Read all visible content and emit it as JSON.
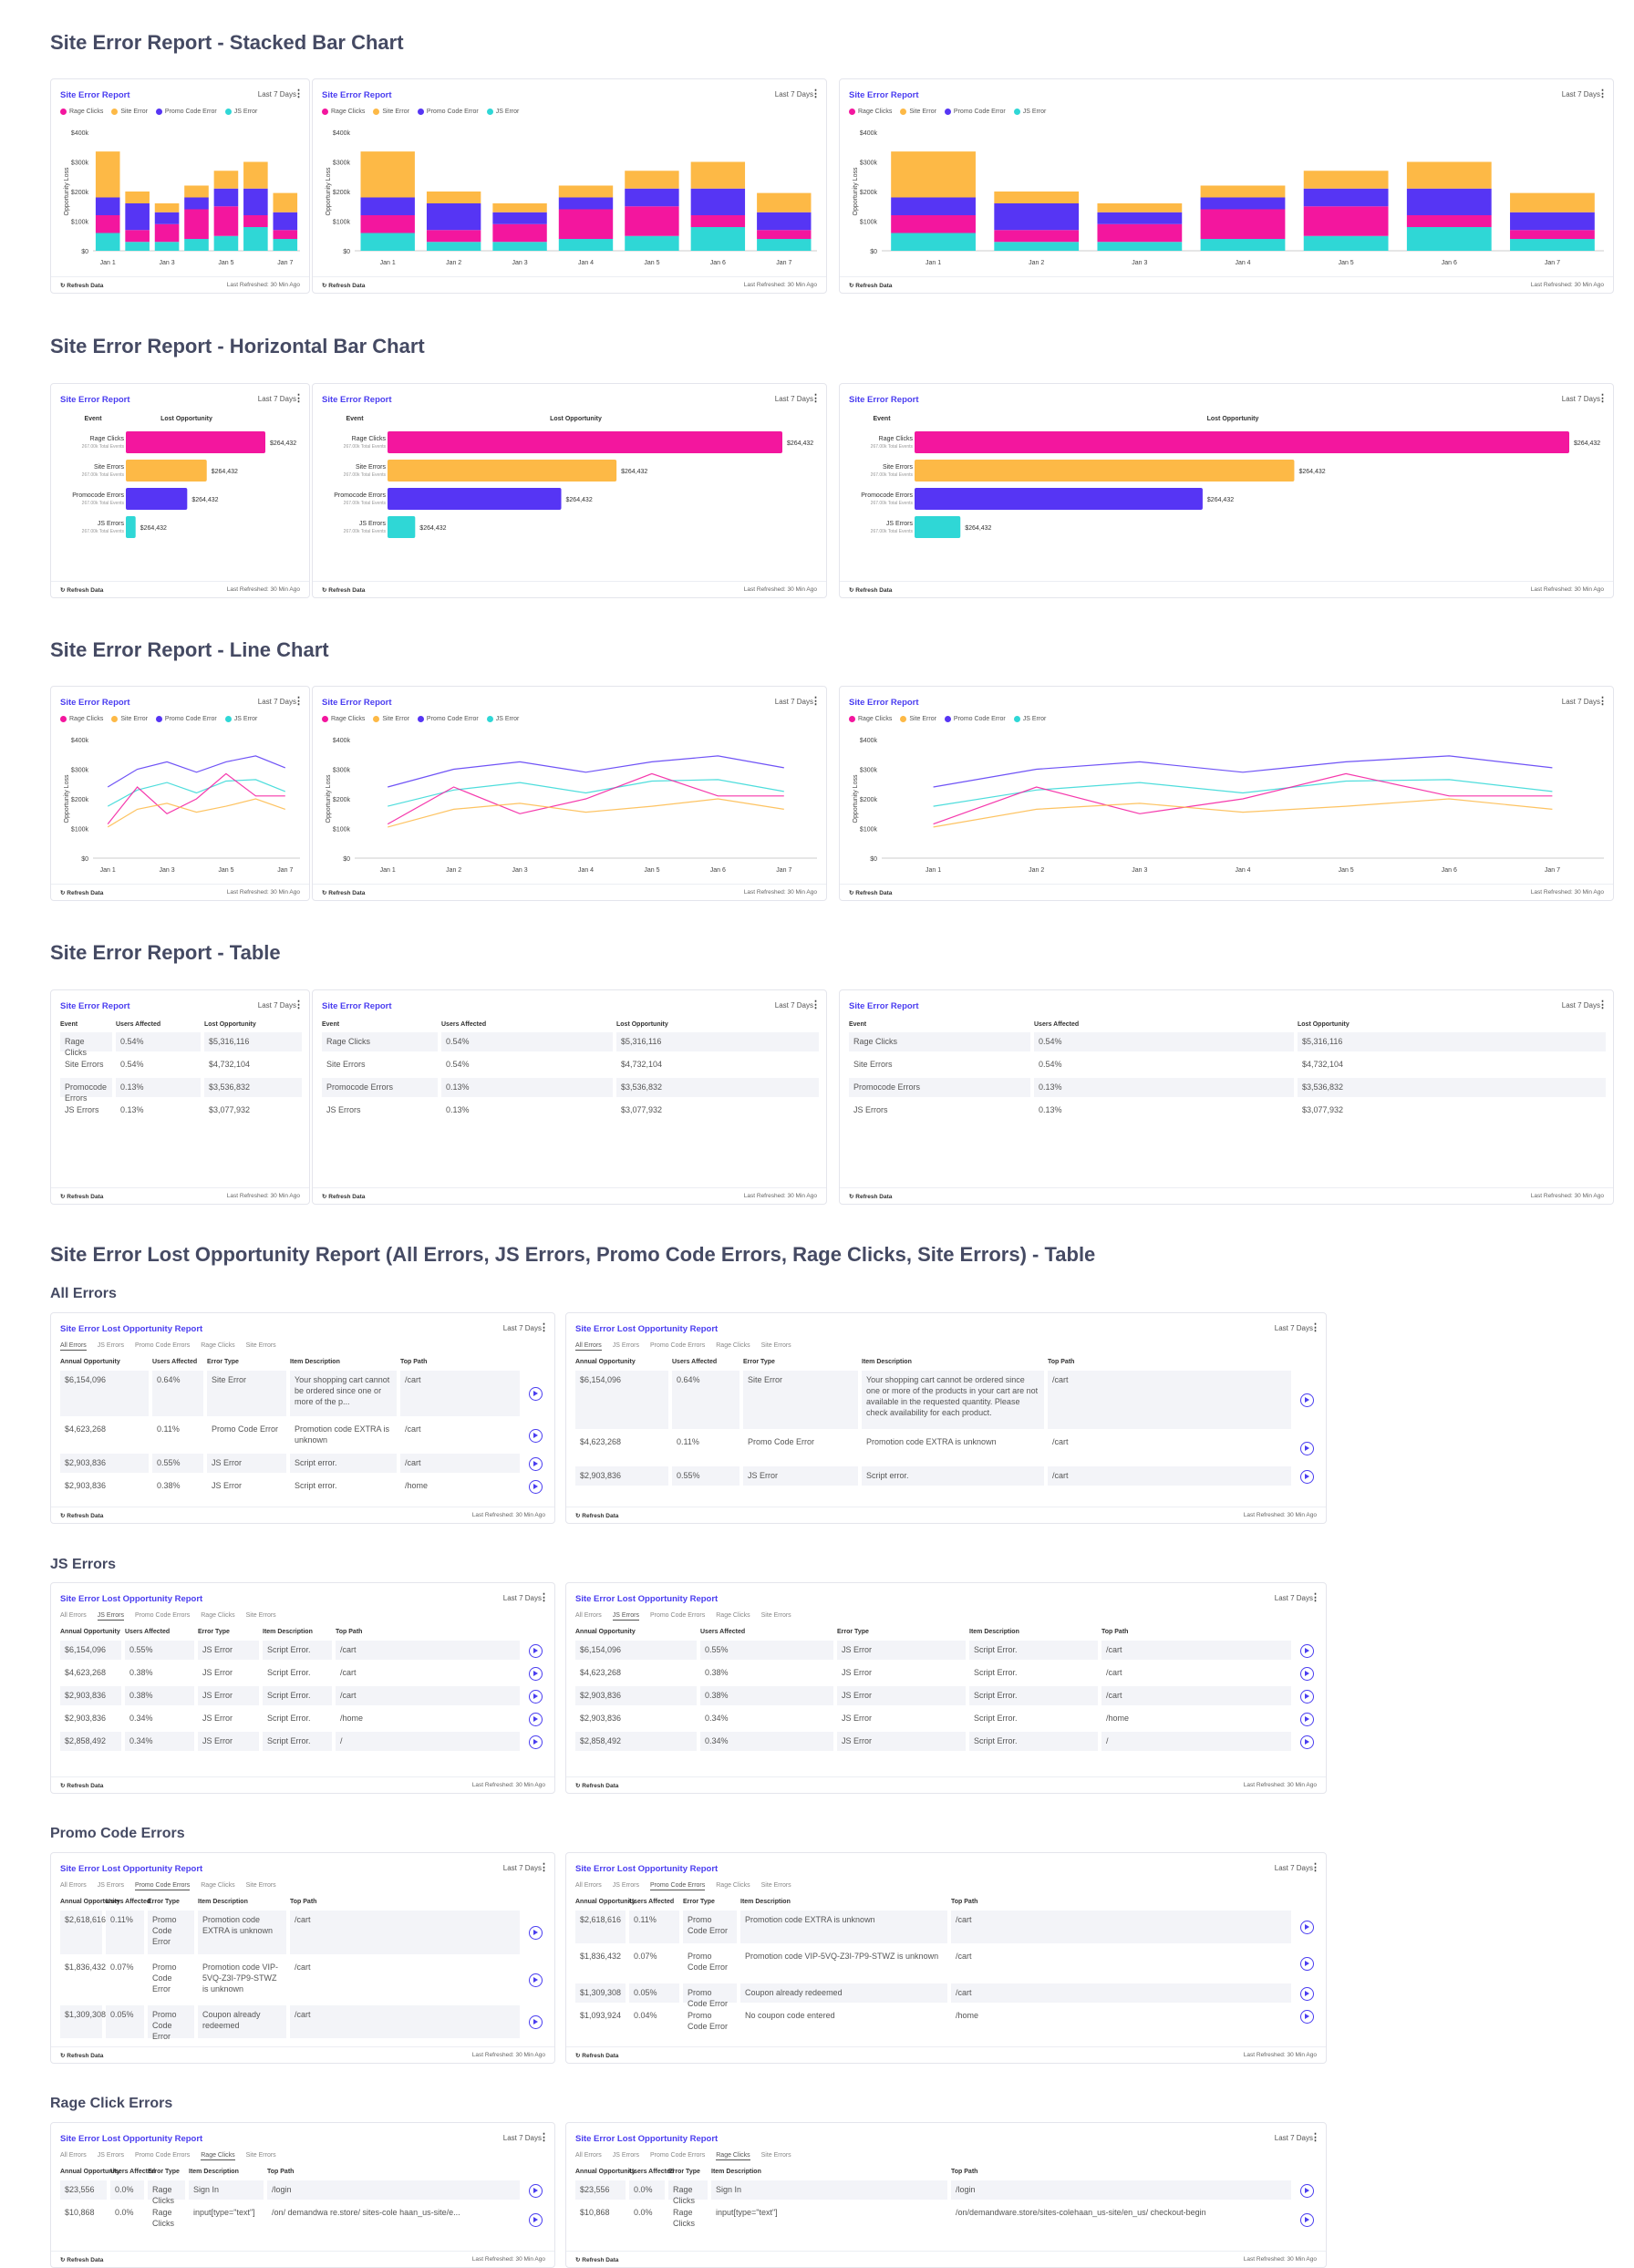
{
  "sections": {
    "stacked": "Site Error Report - Stacked Bar Chart",
    "horizontal": "Site Error Report - Horizontal Bar Chart",
    "line": "Site Error Report - Line Chart",
    "table": "Site Error Report - Table",
    "lost": "Site Error Lost Opportunity Report (All Errors, JS Errors, Promo Code Errors, Rage Clicks, Site Errors) - Table",
    "all_errors": "All Errors",
    "js_errors": "JS Errors",
    "promo_errors": "Promo Code Errors",
    "rage_errors": "Rage Click Errors"
  },
  "card": {
    "title": "Site Error Report",
    "range": "Last 7 Days",
    "refresh": "Refresh Data",
    "refreshed": "Last Refreshed: 30 Min Ago",
    "lost_title": "Site Error Lost Opportunity Report"
  },
  "colors": {
    "rage": "#f3169e",
    "site": "#fdb946",
    "promo": "#5635f4",
    "js": "#2fd7d6",
    "accent": "#4a3df0"
  },
  "legend": [
    "Rage Clicks",
    "Site Error",
    "Promo Code Error",
    "JS Error"
  ],
  "chart_data": [
    {
      "type": "bar",
      "stacked": true,
      "categories": [
        "Jan 1",
        "Jan 2",
        "Jan 3",
        "Jan 4",
        "Jan 5",
        "Jan 6",
        "Jan 7"
      ],
      "x_tick_labels_small": [
        "Jan 1",
        "Jan 3",
        "Jan 5",
        "Jan 7"
      ],
      "ylabel": "Opportunity Loss",
      "yticks": [
        "$0",
        "$100k",
        "$200k",
        "$300k",
        "$400k"
      ],
      "ylim": [
        0,
        400000
      ],
      "series": [
        {
          "name": "JS Error",
          "values": [
            60000,
            30000,
            30000,
            40000,
            50000,
            80000,
            40000
          ]
        },
        {
          "name": "Rage Clicks",
          "values": [
            60000,
            40000,
            60000,
            100000,
            100000,
            40000,
            30000
          ]
        },
        {
          "name": "Promo Code Error",
          "values": [
            60000,
            90000,
            40000,
            40000,
            60000,
            90000,
            60000
          ]
        },
        {
          "name": "Site Error",
          "values": [
            155000,
            40000,
            30000,
            40000,
            60000,
            90000,
            65000
          ]
        }
      ]
    },
    {
      "type": "bar",
      "orientation": "horizontal",
      "xlabel": "Lost Opportunity",
      "category_header": "Event",
      "categories": [
        "Rage Clicks",
        "Site Errors",
        "Promocode Errors",
        "JS Errors"
      ],
      "subtitles": [
        "267.00k Total Events",
        "267.00k Total Events",
        "267.00k Total Events",
        "267.00k Total Events"
      ],
      "values": [
        100,
        58,
        44,
        7
      ],
      "value_labels": [
        "$264,432",
        "$264,432",
        "$264,432",
        "$264,432"
      ]
    },
    {
      "type": "line",
      "categories": [
        "Jan 1",
        "Jan 2",
        "Jan 3",
        "Jan 4",
        "Jan 5",
        "Jan 6",
        "Jan 7"
      ],
      "x_tick_labels_small": [
        "Jan 1",
        "Jan 3",
        "Jan 5",
        "Jan 7"
      ],
      "ylabel": "Opportunity Loss",
      "yticks": [
        "$0",
        "$100k",
        "$200k",
        "$300k",
        "$400k"
      ],
      "ylim": [
        0,
        400000
      ],
      "series": [
        {
          "name": "Promo Code Error",
          "values": [
            240000,
            300000,
            325000,
            290000,
            325000,
            345000,
            305000
          ]
        },
        {
          "name": "JS Error",
          "values": [
            175000,
            230000,
            255000,
            220000,
            260000,
            265000,
            225000
          ]
        },
        {
          "name": "Rage Clicks",
          "values": [
            115000,
            240000,
            150000,
            200000,
            285000,
            210000,
            210000
          ]
        },
        {
          "name": "Site Error",
          "values": [
            105000,
            165000,
            185000,
            155000,
            175000,
            200000,
            165000
          ]
        }
      ]
    },
    {
      "type": "table",
      "columns": [
        "Event",
        "Users Affected",
        "Lost Opportunity"
      ],
      "rows": [
        [
          "Rage Clicks",
          "0.54%",
          "$5,316,116"
        ],
        [
          "Site Errors",
          "0.54%",
          "$4,732,104"
        ],
        [
          "Promocode Errors",
          "0.13%",
          "$3,536,832"
        ],
        [
          "JS Errors",
          "0.13%",
          "$3,077,932"
        ]
      ]
    }
  ],
  "lost": {
    "tabs": [
      "All Errors",
      "JS Errors",
      "Promo Code Errors",
      "Rage Clicks",
      "Site Errors"
    ],
    "columns": [
      "Annual Opportunity",
      "Users Affected",
      "Error Type",
      "Item Description",
      "Top Path"
    ],
    "all": [
      [
        "$6,154,096",
        "0.64%",
        "Site Error",
        "Your shopping cart cannot be ordered since one or more of the p...",
        "/cart"
      ],
      [
        "$4,623,268",
        "0.11%",
        "Promo Code Error",
        "Promotion code EXTRA is unknown",
        "/cart"
      ],
      [
        "$2,903,836",
        "0.55%",
        "JS Error",
        "Script error.",
        "/cart"
      ],
      [
        "$2,903,836",
        "0.38%",
        "JS Error",
        "Script error.",
        "/home"
      ]
    ],
    "all_wide": [
      [
        "$6,154,096",
        "0.64%",
        "Site Error",
        "Your shopping cart cannot be ordered since one or more of the products in your cart are not available in the requested quantity. Please check availability for each product.",
        "/cart"
      ],
      [
        "$4,623,268",
        "0.11%",
        "Promo Code Error",
        "Promotion code EXTRA is unknown",
        "/cart"
      ],
      [
        "$2,903,836",
        "0.55%",
        "JS Error",
        "Script error.",
        "/cart"
      ]
    ],
    "js": [
      [
        "$6,154,096",
        "0.55%",
        "JS Error",
        "Script Error.",
        "/cart"
      ],
      [
        "$4,623,268",
        "0.38%",
        "JS Error",
        "Script Error.",
        "/cart"
      ],
      [
        "$2,903,836",
        "0.38%",
        "JS Error",
        "Script Error.",
        "/cart"
      ],
      [
        "$2,903,836",
        "0.34%",
        "JS Error",
        "Script Error.",
        "/home"
      ],
      [
        "$2,858,492",
        "0.34%",
        "JS Error",
        "Script Error.",
        "/"
      ]
    ],
    "promo": [
      [
        "$2,618,616",
        "0.11%",
        "Promo Code Error",
        "Promotion code EXTRA is unknown",
        "/cart"
      ],
      [
        "$1,836,432",
        "0.07%",
        "Promo Code Error",
        "Promotion code VIP-5VQ-Z3I-7P9-STWZ is unknown",
        "/cart"
      ],
      [
        "$1,309,308",
        "0.05%",
        "Promo Code Error",
        "Coupon already redeemed",
        "/cart"
      ]
    ],
    "promo_wide": [
      [
        "$2,618,616",
        "0.11%",
        "Promo Code Error",
        "Promotion code EXTRA is unknown",
        "/cart"
      ],
      [
        "$1,836,432",
        "0.07%",
        "Promo Code Error",
        "Promotion code VIP-5VQ-Z3I-7P9-STWZ is unknown",
        "/cart"
      ],
      [
        "$1,309,308",
        "0.05%",
        "Promo Code Error",
        "Coupon already redeemed",
        "/cart"
      ],
      [
        "$1,093,924",
        "0.04%",
        "Promo Code Error",
        "No coupon code entered",
        "/home"
      ]
    ],
    "rage": [
      [
        "$23,556",
        "0.0%",
        "Rage Clicks",
        "Sign In",
        "/login"
      ],
      [
        "$10,868",
        "0.0%",
        "Rage Clicks",
        "input[type=\"text\"]",
        "/on/ demandwa re.store/ sites-cole haan_us-site/e..."
      ]
    ],
    "rage_wide": [
      [
        "$23,556",
        "0.0%",
        "Rage Clicks",
        "Sign In",
        "/login"
      ],
      [
        "$10,868",
        "0.0%",
        "Rage Clicks",
        "input[type=\"text\"]",
        "/on/demandware.store/sites-colehaan_us-site/en_us/ checkout-begin"
      ]
    ]
  }
}
